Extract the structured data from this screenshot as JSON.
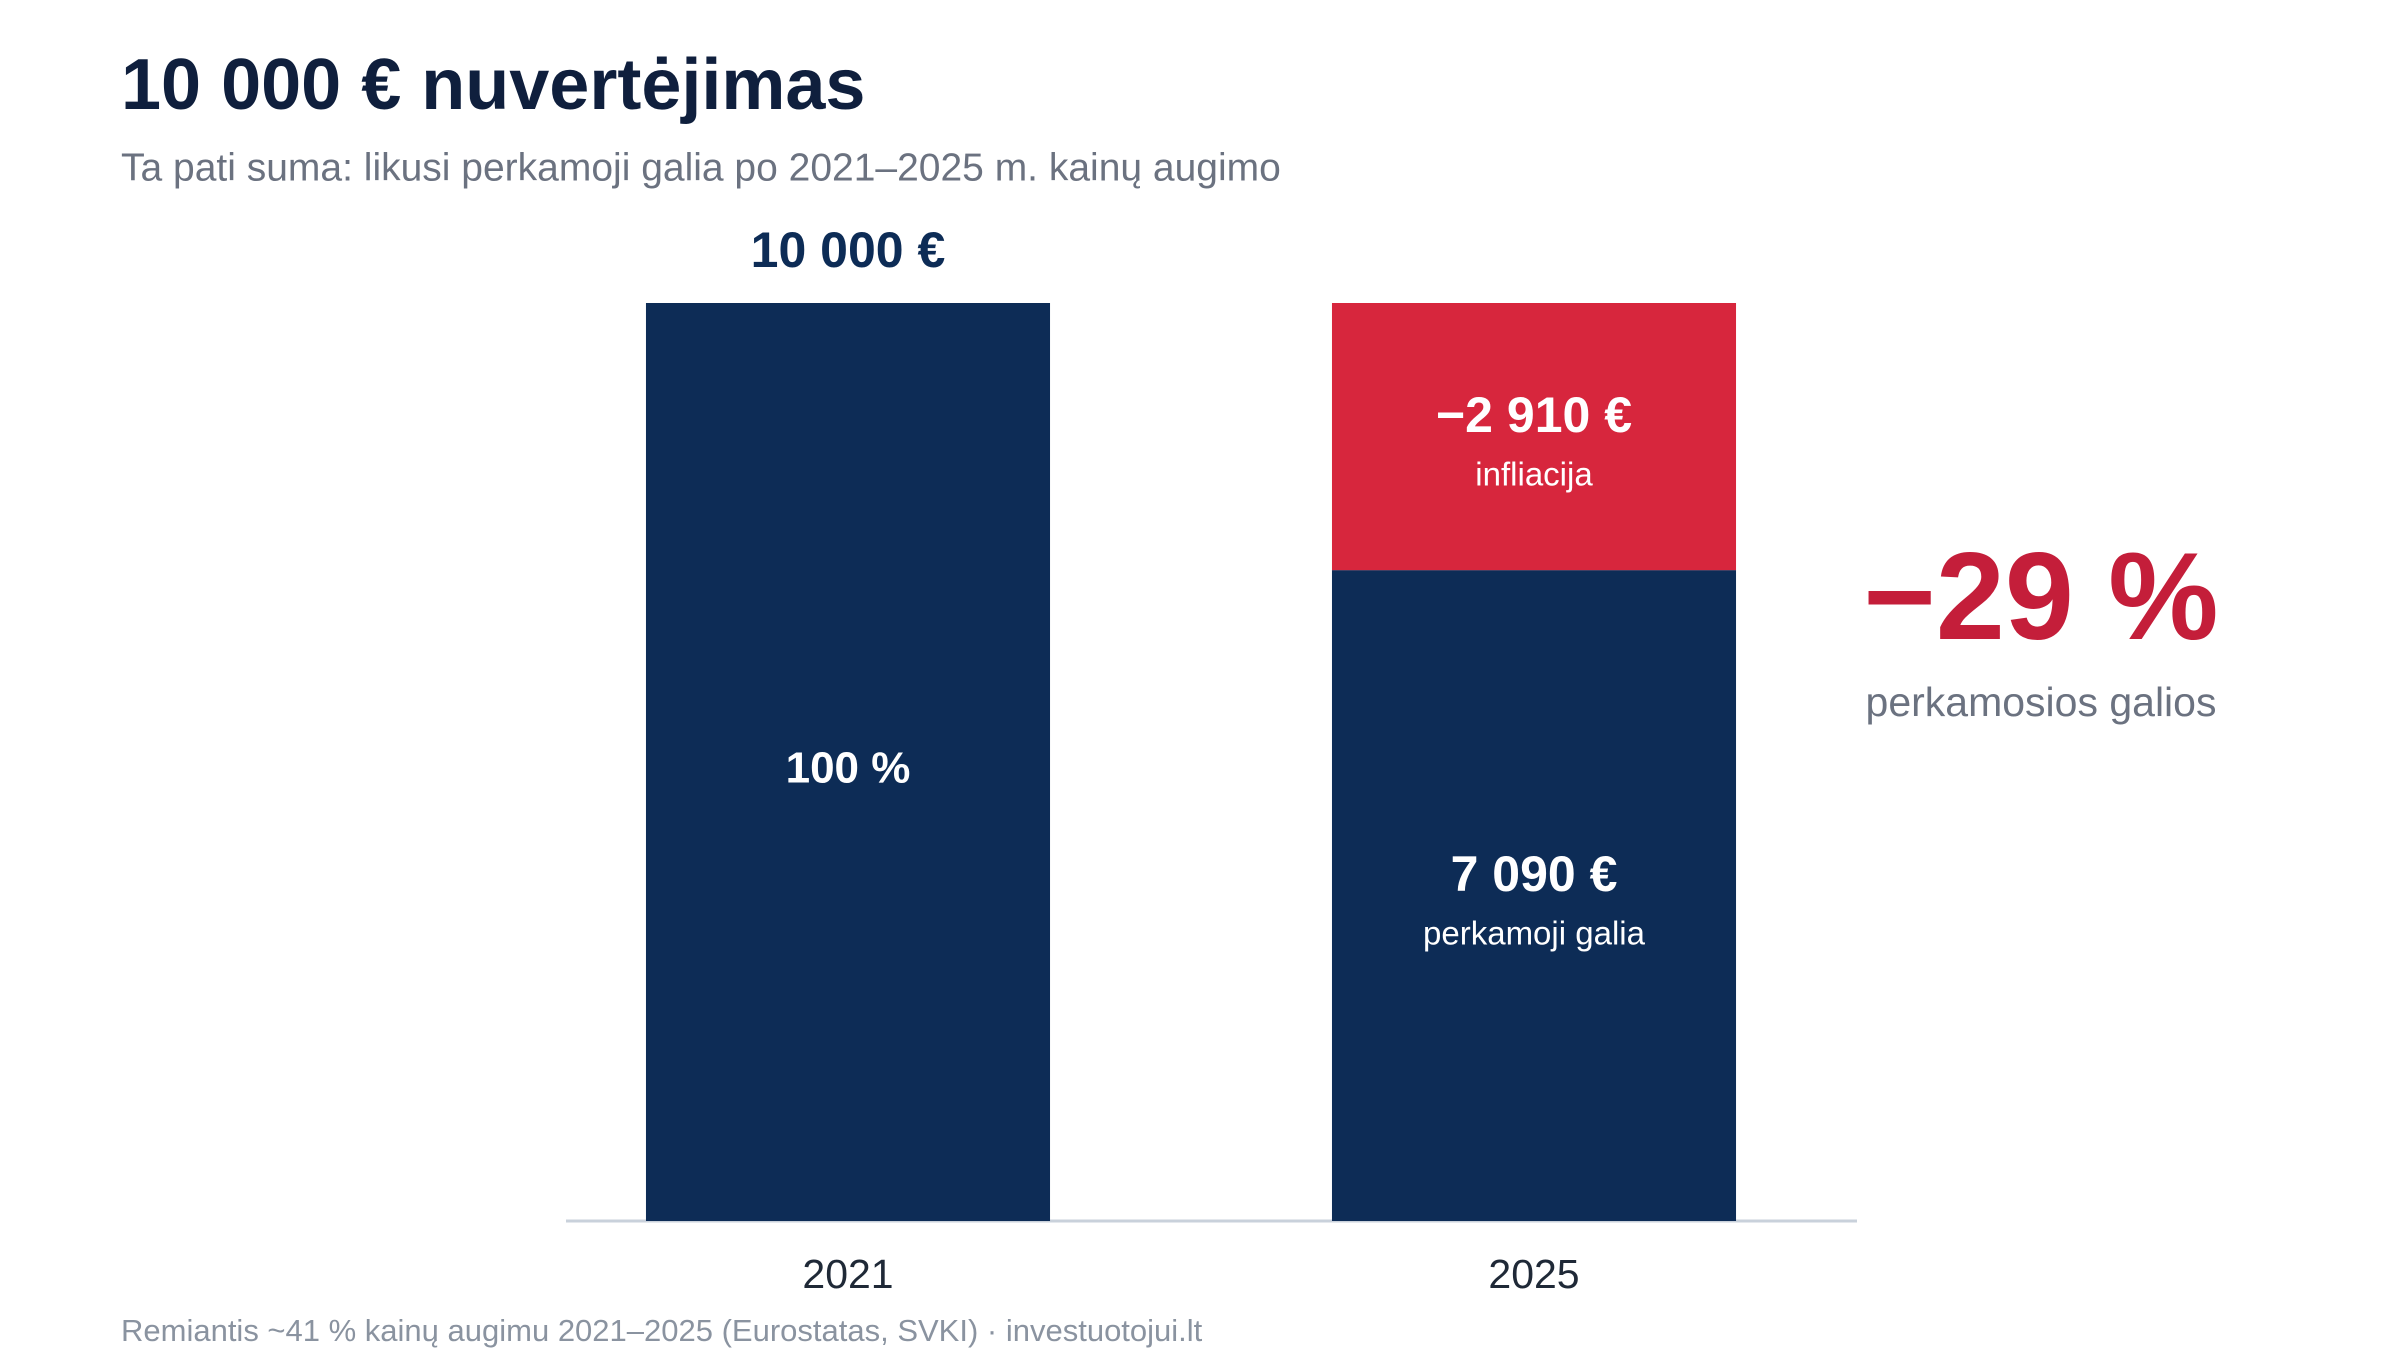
{
  "chart_data": {
    "type": "stacked_bar",
    "title": "10 000 € nuvertėjimas",
    "subtitle": "Ta pati suma: likusi perkamoji galia po 2021–2025 m. kainų augimo",
    "categories": [
      "2021",
      "2025"
    ],
    "series": [
      {
        "name": "perkamoji galia",
        "color": "#0d2c56",
        "values": [
          10000,
          7090
        ],
        "value_labels": [
          null,
          "7 090 €"
        ]
      },
      {
        "name": "infliacija",
        "color": "#d7263d",
        "values": [
          null,
          2910
        ],
        "value_labels": [
          null,
          "−2 910 €"
        ]
      }
    ],
    "total_labels": [
      "10 000 €",
      null
    ],
    "annotations": [
      {
        "text": "100 %"
      },
      {
        "text": "−29 %",
        "detail": "perkamosios galios",
        "color": "#c41e3a"
      }
    ],
    "ylim": [
      0,
      10000
    ],
    "source": "Remiantis ~41 % kainų augimu 2021–2025 (Eurostatas, SVKI) · investuotojui.lt"
  }
}
